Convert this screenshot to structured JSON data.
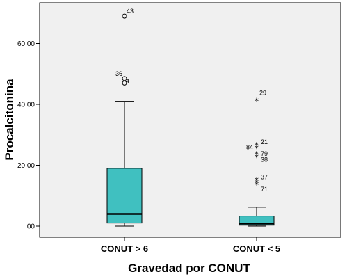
{
  "chart_data": {
    "type": "boxplot",
    "title": "",
    "xlabel": "Gravedad por CONUT",
    "ylabel": "Procalcitonina",
    "ylim": [
      -4,
      74
    ],
    "y_ticks": [
      {
        "value": 0,
        "label": ",00"
      },
      {
        "value": 20,
        "label": "20,00"
      },
      {
        "value": 40,
        "label": "40,00"
      },
      {
        "value": 60,
        "label": "60,00"
      }
    ],
    "grid": false,
    "colors": {
      "box_fill": "#40c0c0",
      "plot_background": "#f0f0f0",
      "median": "#000000"
    },
    "categories": [
      "CONUT > 6",
      "CONUT < 5"
    ],
    "boxes": [
      {
        "category": "CONUT > 6",
        "min": 0,
        "q1": 1,
        "median": 4,
        "q3": 19,
        "max": 41,
        "outliers": [
          {
            "value": 69,
            "label": "43",
            "marker": "circle"
          },
          {
            "value": 48.5,
            "label": "36",
            "marker": "circle"
          },
          {
            "value": 47,
            "label": "4",
            "marker": "circle"
          }
        ]
      },
      {
        "category": "CONUT < 5",
        "min": 0,
        "q1": 0.3,
        "median": 0.8,
        "q3": 3.3,
        "max": 6.2,
        "outliers": [
          {
            "value": 41,
            "label": "29",
            "marker": "star"
          },
          {
            "value": 26.5,
            "label": "21",
            "marker": "star"
          },
          {
            "value": 25.5,
            "label": "84",
            "marker": "star"
          },
          {
            "value": 23.5,
            "label": "79",
            "marker": "star"
          },
          {
            "value": 22.5,
            "label": "38",
            "marker": "star"
          },
          {
            "value": 15,
            "label": "37",
            "marker": "star"
          },
          {
            "value": 14.2,
            "label": "",
            "marker": "star"
          },
          {
            "value": 13.5,
            "label": "71",
            "marker": "star"
          }
        ]
      }
    ]
  }
}
